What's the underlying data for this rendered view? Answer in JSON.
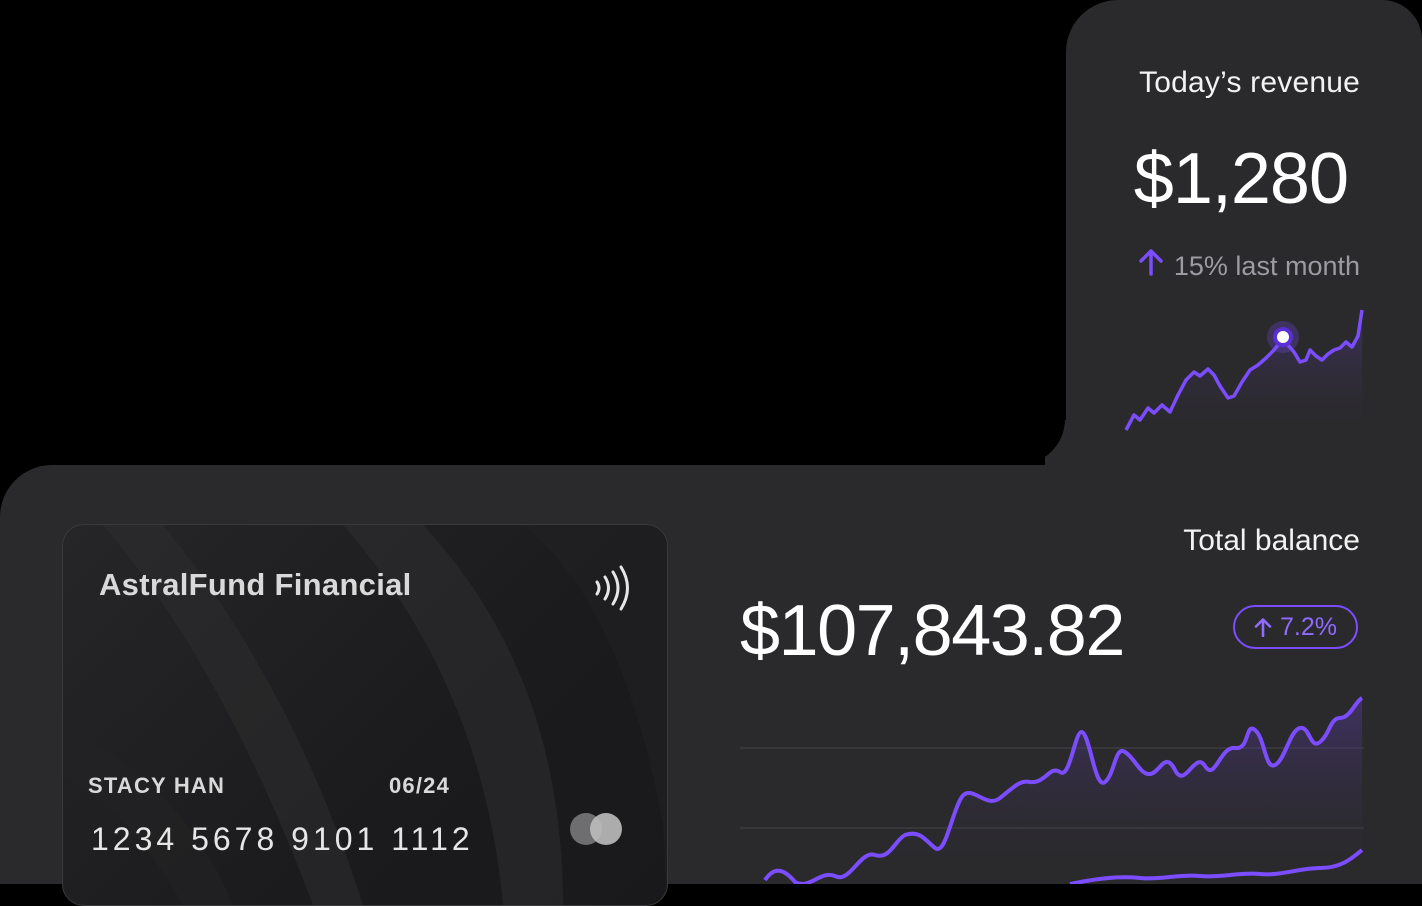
{
  "revenue": {
    "title": "Today’s revenue",
    "amount": "$1,280",
    "change_text": "15% last month",
    "change_icon": "arrow-up-icon",
    "accent": "#7c4dff"
  },
  "card": {
    "bank": "AstralFund Financial",
    "holder": "STACY HAN",
    "expiry": "06/24",
    "number": "1234  5678  9101  1112",
    "network_icon": "mastercard-logo-icon",
    "contactless_icon": "contactless-icon"
  },
  "balance": {
    "title": "Total balance",
    "amount": "$107,843.82",
    "badge": "7.2%",
    "badge_icon": "arrow-up-icon"
  },
  "colors": {
    "panel": "#2a2a2c",
    "accent": "#7c4dff",
    "muted": "#9b9ba1"
  }
}
